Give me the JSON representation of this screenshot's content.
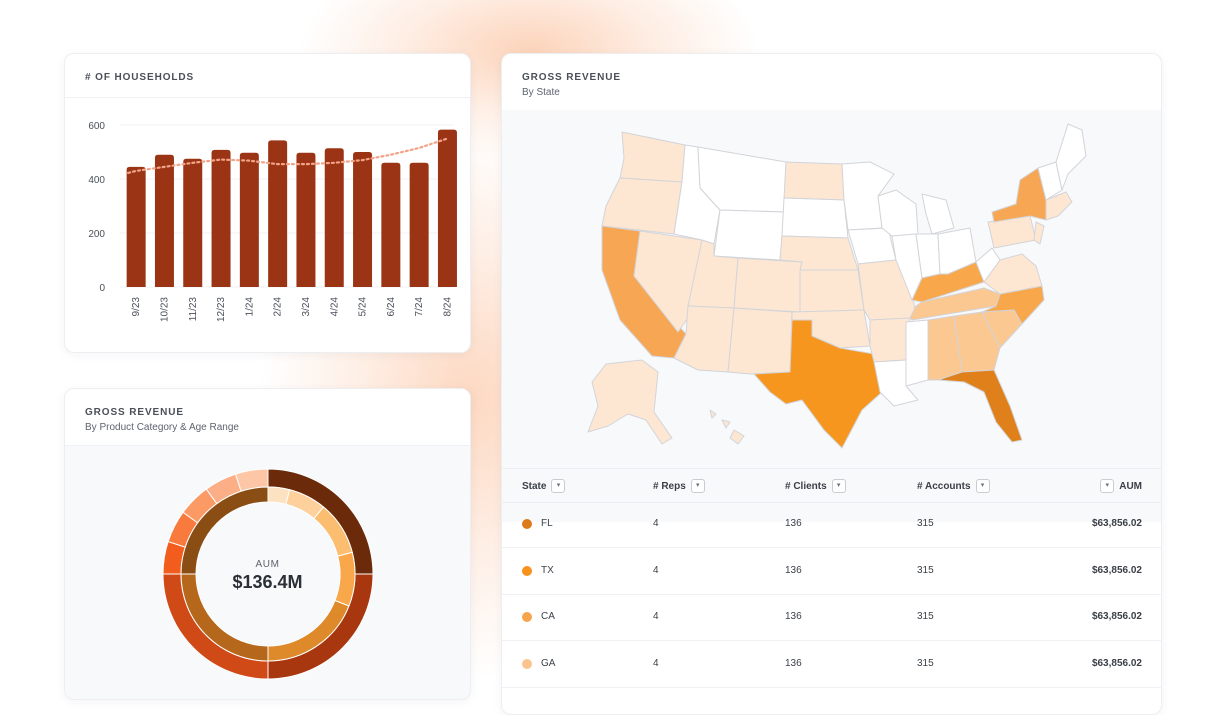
{
  "colors": {
    "bar": "#9b3414",
    "trend": "#f2a489",
    "map_fl": "#e0801a",
    "map_tx": "#f7961f",
    "map_high": "#f7a653",
    "map_mid": "#fbc891",
    "map_light": "#fde7d3",
    "map_none": "#ffffff"
  },
  "households": {
    "title": "# OF HOUSEHOLDS",
    "chart_data": {
      "type": "bar",
      "categories": [
        "9/23",
        "10/23",
        "11/23",
        "12/23",
        "1/24",
        "2/24",
        "3/24",
        "4/24",
        "5/24",
        "6/24",
        "7/24",
        "8/24"
      ],
      "values": [
        445,
        490,
        475,
        508,
        497,
        543,
        497,
        514,
        500,
        460,
        460,
        583
      ],
      "trend": [
        430,
        445,
        460,
        472,
        468,
        455,
        455,
        460,
        470,
        490,
        515,
        550
      ],
      "ylim": [
        0,
        600
      ],
      "yticks": [
        "0",
        "200",
        "400",
        "600"
      ],
      "grid": true
    }
  },
  "donut": {
    "title": "GROSS REVENUE",
    "subtitle": "By Product Category & Age Range",
    "center_label": "AUM",
    "center_value": "$136.4M",
    "chart_data": {
      "type": "pie",
      "outer": [
        {
          "value": 25,
          "color": "#6b2a0a"
        },
        {
          "value": 25,
          "color": "#a8360f"
        },
        {
          "value": 25,
          "color": "#d04a17"
        },
        {
          "value": 5,
          "color": "#f25c1d"
        },
        {
          "value": 5,
          "color": "#f87a3c"
        },
        {
          "value": 5,
          "color": "#fb9a64"
        },
        {
          "value": 5,
          "color": "#fcae86"
        },
        {
          "value": 5,
          "color": "#fdc6a6"
        }
      ],
      "inner": [
        {
          "value": 4,
          "color": "#fce2c0"
        },
        {
          "value": 7,
          "color": "#fdd09c"
        },
        {
          "value": 10,
          "color": "#fbbd70"
        },
        {
          "value": 10,
          "color": "#f8a84a"
        },
        {
          "value": 19,
          "color": "#df8a2a"
        },
        {
          "value": 25,
          "color": "#b5671c"
        },
        {
          "value": 25,
          "color": "#8a4e14"
        }
      ]
    }
  },
  "state_revenue": {
    "title": "GROSS REVENUE",
    "subtitle": "By State",
    "columns": {
      "state": "State",
      "reps": "# Reps",
      "clients": "# Clients",
      "accounts": "# Accounts",
      "aum": "AUM"
    },
    "sort_icon": "chevron-down-icon",
    "rows": [
      {
        "state": "FL",
        "reps": "4",
        "clients": "136",
        "accounts": "315",
        "aum": "$63,856.02",
        "color": "#dd7a1c"
      },
      {
        "state": "TX",
        "reps": "4",
        "clients": "136",
        "accounts": "315",
        "aum": "$63,856.02",
        "color": "#f7921c"
      },
      {
        "state": "CA",
        "reps": "4",
        "clients": "136",
        "accounts": "315",
        "aum": "$63,856.02",
        "color": "#f8a44e"
      },
      {
        "state": "GA",
        "reps": "4",
        "clients": "136",
        "accounts": "315",
        "aum": "$63,856.02",
        "color": "#fbc48c"
      }
    ]
  }
}
